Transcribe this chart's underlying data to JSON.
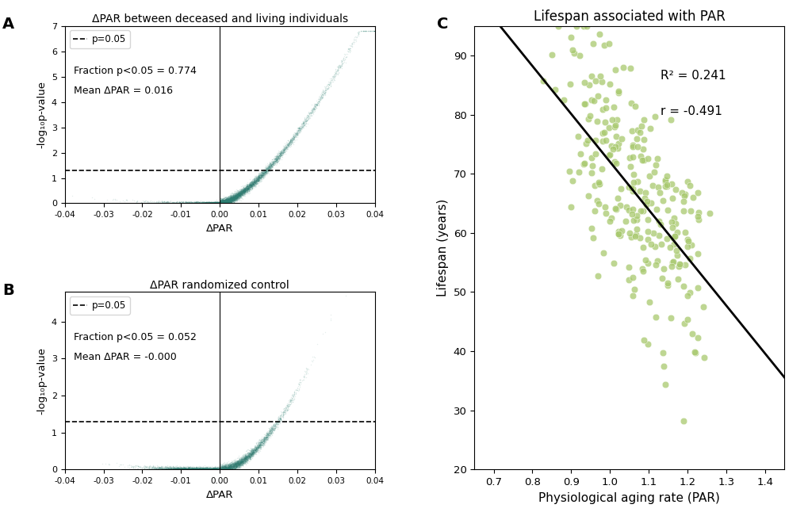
{
  "panel_A_title": "ΔPAR between deceased and living individuals",
  "panel_B_title": "ΔPAR randomized control",
  "panel_C_title": "Lifespan associated with PAR",
  "panel_A_fraction": "Fraction p<0.05 = 0.774",
  "panel_A_mean": "Mean ΔPAR = 0.016",
  "panel_B_fraction": "Fraction p<0.05 = 0.052",
  "panel_B_mean": "Mean ΔPAR = -0.000",
  "panel_C_r2": "R² = 0.241",
  "panel_C_r": "r = -0.491",
  "dashed_line_y": 1.301,
  "scatter_color_AB": "#2d7d72",
  "scatter_color_C": "#a8c96e",
  "xlabel_AB": "ΔPAR",
  "ylabel_AB": "-log₁₀p-value",
  "xlabel_C": "Physiological aging rate (PAR)",
  "ylabel_C": "Lifespan (years)",
  "xlim_AB": [
    -0.04,
    0.04
  ],
  "ylim_A": [
    0,
    7
  ],
  "ylim_B": [
    0,
    4.8
  ],
  "xlim_C": [
    0.65,
    1.45
  ],
  "ylim_C": [
    20,
    95
  ],
  "reg_slope": -81.0,
  "reg_intercept": 153.0
}
